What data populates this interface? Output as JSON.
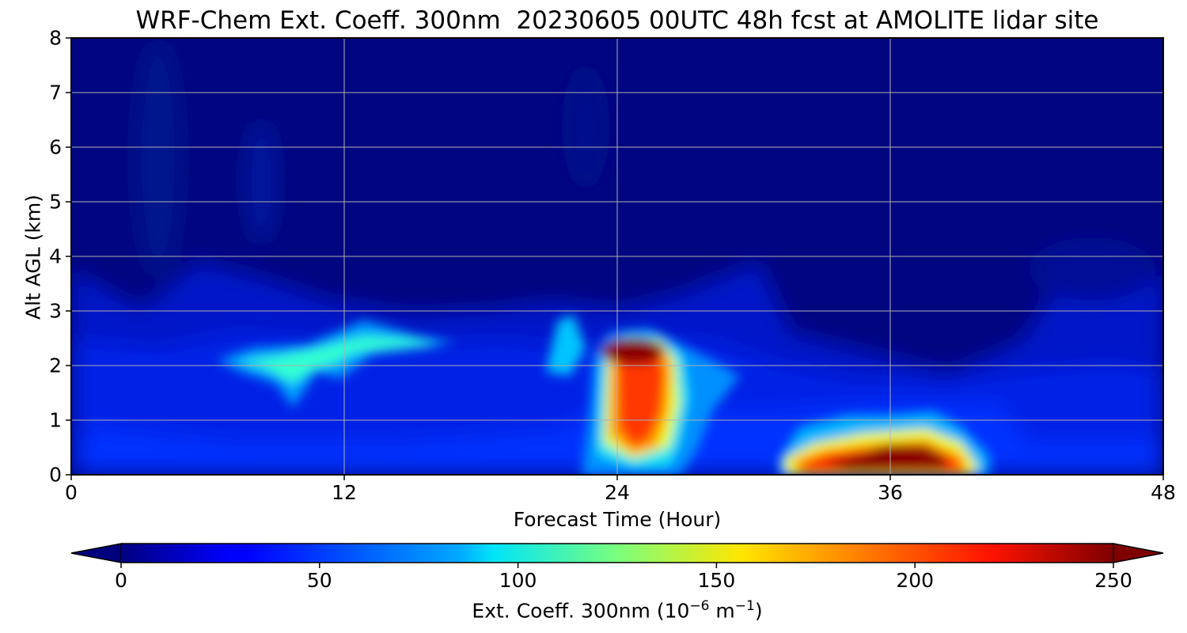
{
  "chart_data": {
    "type": "heatmap",
    "title": "WRF-Chem Ext. Coeff. 300nm  20230605 00UTC 48h fcst at AMOLITE lidar site",
    "xlabel": "Forecast Time (Hour)",
    "ylabel": "Alt AGL (km)",
    "xlim": [
      0,
      48
    ],
    "ylim": [
      0,
      8
    ],
    "x_ticks": [
      "0",
      "12",
      "24",
      "36",
      "48"
    ],
    "y_ticks": [
      "0",
      "1",
      "2",
      "3",
      "4",
      "5",
      "6",
      "7",
      "8"
    ],
    "grid": true,
    "colormap": "jet",
    "colorbar": {
      "label_main": "Ext. Coeff. 300nm  (10",
      "label_exp1": "−6",
      "label_mid": " m",
      "label_exp2": "−1",
      "label_end": ")",
      "range": [
        0,
        250
      ],
      "ticks": [
        "0",
        "50",
        "100",
        "150",
        "200",
        "250"
      ],
      "extend": "both",
      "orientation": "horizontal"
    },
    "features": [
      {
        "hour": 25,
        "alt_km": 2.2,
        "value": 255
      },
      {
        "hour": 25,
        "alt_km": 1.2,
        "value": 200
      },
      {
        "hour": 37,
        "alt_km": 0.3,
        "value": 255
      },
      {
        "hour": 33.5,
        "alt_km": 0.3,
        "value": 210
      },
      {
        "hour": 12.5,
        "alt_km": 2.35,
        "value": 95
      },
      {
        "hour": 9,
        "alt_km": 2.05,
        "value": 90
      },
      {
        "hour": 22,
        "alt_km": 2.2,
        "value": 85
      },
      {
        "hour": 28.5,
        "alt_km": 1.5,
        "value": 80
      }
    ]
  }
}
